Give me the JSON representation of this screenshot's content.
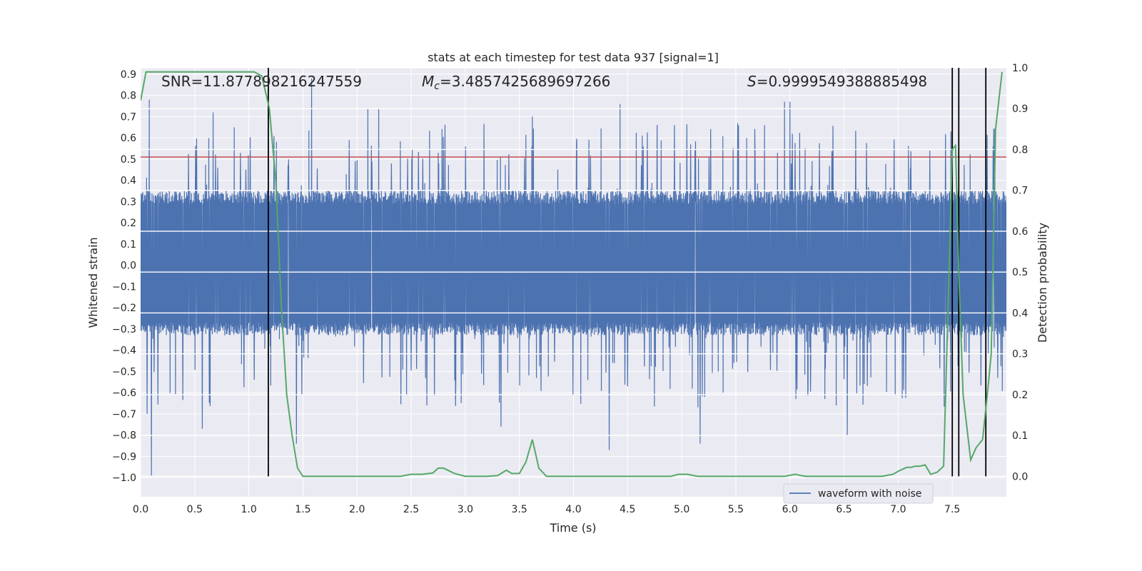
{
  "chart_data": {
    "type": "line",
    "title": "stats at each timestep for test data 937 [signal=1]",
    "xlabel": "Time (s)",
    "ylabel_left": "Whitened strain",
    "ylabel_right": "Detection probability",
    "xlim": [
      0.0,
      8.0
    ],
    "ylim_left": [
      -1.09,
      0.93
    ],
    "ylim_right": [
      -0.05,
      1.0
    ],
    "xticks": [
      0.0,
      0.5,
      1.0,
      1.5,
      2.0,
      2.5,
      3.0,
      3.5,
      4.0,
      4.5,
      5.0,
      5.5,
      6.0,
      6.5,
      7.0,
      7.5
    ],
    "xtick_labels": [
      "0.0",
      "0.5",
      "1.0",
      "1.5",
      "2.0",
      "2.5",
      "3.0",
      "3.5",
      "4.0",
      "4.5",
      "5.0",
      "5.5",
      "6.0",
      "6.5",
      "7.0",
      "7.5"
    ],
    "yticks_left": [
      0.9,
      0.8,
      0.7,
      0.6,
      0.5,
      0.4,
      0.3,
      0.2,
      0.1,
      0.0,
      -0.1,
      -0.2,
      -0.3,
      -0.4,
      -0.5,
      -0.6,
      -0.7,
      -0.8,
      -0.9,
      -1.0
    ],
    "ytick_labels_left": [
      "0.9",
      "0.8",
      "0.7",
      "0.6",
      "0.5",
      "0.4",
      "0.3",
      "0.2",
      "0.1",
      "0.0",
      "−0.1",
      "−0.2",
      "−0.3",
      "−0.4",
      "−0.5",
      "−0.6",
      "−0.7",
      "−0.8",
      "−0.9",
      "−1.0"
    ],
    "yticks_right": [
      1.0,
      0.9,
      0.8,
      0.7,
      0.6,
      0.5,
      0.4,
      0.3,
      0.2,
      0.1,
      0.0
    ],
    "ytick_labels_right": [
      "1.0",
      "0.9",
      "0.8",
      "0.7",
      "0.6",
      "0.5",
      "0.4",
      "0.3",
      "0.2",
      "0.1",
      "0.0"
    ],
    "grid": true,
    "background_color": "#eaeaf2",
    "legend": {
      "position": "lower-right",
      "entries": [
        {
          "label": "waveform with noise",
          "color": "#4c72b0"
        }
      ]
    },
    "annotations": {
      "snr": "SNR=11.877898216247559",
      "mc_symbol": "M",
      "mc_sub": "c",
      "mc_value": "=3.4857425689697266",
      "s_symbol": "S",
      "s_value": "=0.9999549388885498"
    },
    "series": [
      {
        "name": "waveform with noise",
        "axis": "left",
        "color": "#4c72b0",
        "style": "dense-noise",
        "envelope_typical": [
          -0.42,
          0.45
        ],
        "core_band": [
          -0.3,
          0.32
        ],
        "peaks": [
          {
            "x": 0.08,
            "y": 0.78
          },
          {
            "x": 0.1,
            "y": -0.99
          },
          {
            "x": 0.06,
            "y": -0.7
          },
          {
            "x": 0.57,
            "y": -0.77
          },
          {
            "x": 0.67,
            "y": 0.72
          },
          {
            "x": 1.58,
            "y": 0.88
          },
          {
            "x": 1.44,
            "y": -0.84
          },
          {
            "x": 2.1,
            "y": 0.74
          },
          {
            "x": 2.2,
            "y": 0.74
          },
          {
            "x": 3.33,
            "y": -0.76
          },
          {
            "x": 3.62,
            "y": 0.7
          },
          {
            "x": 4.33,
            "y": -0.87
          },
          {
            "x": 4.43,
            "y": 0.76
          },
          {
            "x": 5.17,
            "y": -0.84
          },
          {
            "x": 5.95,
            "y": 0.77
          },
          {
            "x": 6.0,
            "y": 0.77
          },
          {
            "x": 6.53,
            "y": -0.8
          }
        ]
      },
      {
        "name": "detection probability",
        "axis": "right",
        "color": "#55a868",
        "x": [
          0.0,
          0.05,
          0.1,
          0.2,
          0.5,
          0.8,
          1.0,
          1.05,
          1.12,
          1.19,
          1.25,
          1.3,
          1.35,
          1.4,
          1.45,
          1.5,
          1.6,
          1.8,
          2.0,
          2.2,
          2.4,
          2.5,
          2.6,
          2.7,
          2.75,
          2.8,
          2.9,
          3.0,
          3.2,
          3.3,
          3.38,
          3.43,
          3.5,
          3.56,
          3.62,
          3.68,
          3.75,
          3.9,
          4.0,
          4.3,
          4.6,
          4.9,
          4.97,
          5.05,
          5.15,
          5.3,
          5.5,
          5.8,
          5.95,
          6.05,
          6.1,
          6.15,
          6.3,
          6.6,
          6.85,
          6.95,
          7.02,
          7.08,
          7.12,
          7.16,
          7.2,
          7.25,
          7.3,
          7.36,
          7.42,
          7.47,
          7.5,
          7.53,
          7.56,
          7.6,
          7.67,
          7.72,
          7.78,
          7.82,
          7.86,
          7.9,
          7.96
        ],
        "y": [
          0.92,
          0.99,
          0.99,
          0.99,
          0.99,
          0.99,
          0.99,
          0.99,
          0.98,
          0.9,
          0.72,
          0.42,
          0.2,
          0.1,
          0.02,
          0.0,
          0.0,
          0.0,
          0.0,
          0.0,
          0.0,
          0.005,
          0.005,
          0.008,
          0.02,
          0.02,
          0.007,
          0.0,
          0.0,
          0.002,
          0.015,
          0.007,
          0.007,
          0.035,
          0.09,
          0.02,
          0.0,
          0.0,
          0.0,
          0.0,
          0.0,
          0.0,
          0.005,
          0.005,
          0.0,
          0.0,
          0.0,
          0.0,
          0.0,
          0.005,
          0.002,
          0.0,
          0.0,
          0.0,
          0.0,
          0.005,
          0.015,
          0.022,
          0.022,
          0.025,
          0.025,
          0.028,
          0.005,
          0.01,
          0.025,
          0.5,
          0.8,
          0.81,
          0.5,
          0.2,
          0.04,
          0.07,
          0.09,
          0.19,
          0.3,
          0.85,
          0.99
        ]
      }
    ],
    "vertical_lines": [
      1.18,
      7.5,
      7.56,
      7.81
    ],
    "threshold": {
      "axis": "left",
      "y": 0.51,
      "color": "#c44e52"
    }
  }
}
